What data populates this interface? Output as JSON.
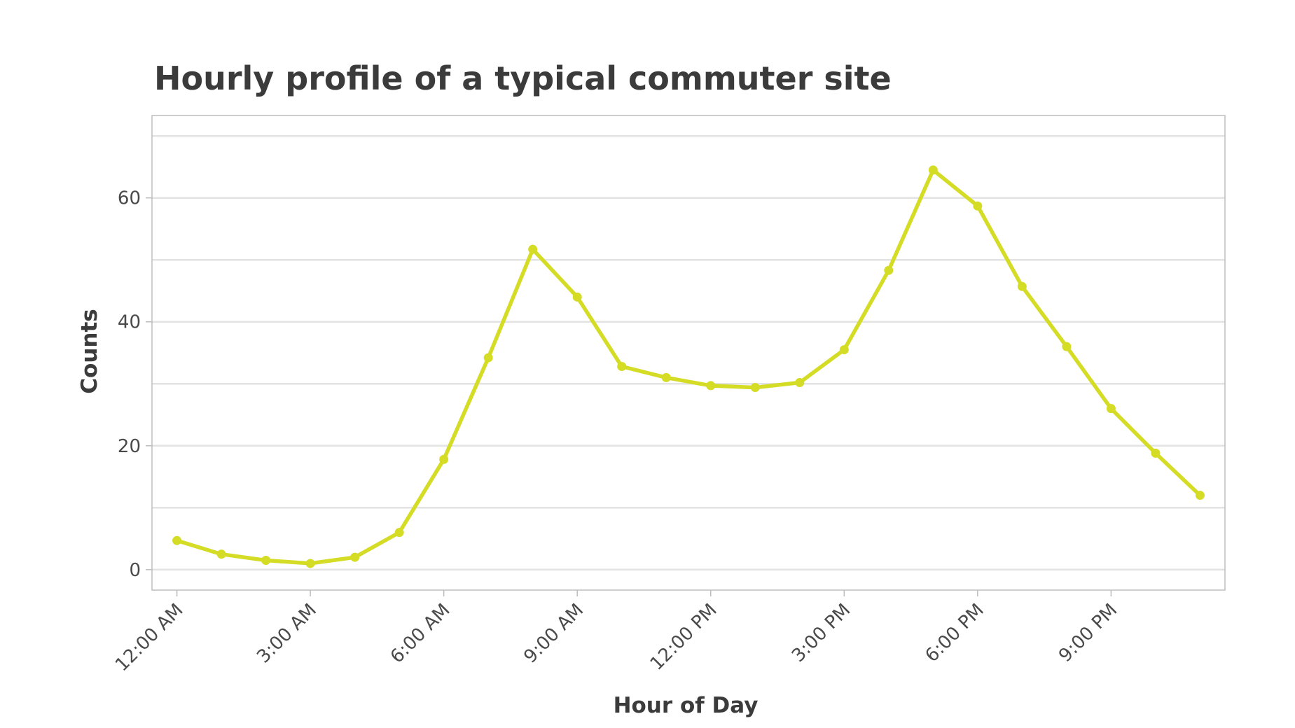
{
  "chart_data": {
    "type": "line",
    "title": "Hourly profile of a typical commuter site",
    "xlabel": "Hour of Day",
    "ylabel": "Counts",
    "x": [
      0,
      1,
      2,
      3,
      4,
      5,
      6,
      7,
      8,
      9,
      10,
      11,
      12,
      13,
      14,
      15,
      16,
      17,
      18,
      19,
      20,
      21,
      22,
      23
    ],
    "series": [
      {
        "values": [
          4.7,
          2.5,
          1.5,
          1.0,
          2.0,
          6.0,
          17.8,
          34.2,
          51.7,
          44.0,
          32.8,
          31.0,
          29.7,
          29.4,
          30.2,
          35.5,
          48.3,
          64.5,
          58.7,
          45.7,
          36.0,
          26.0,
          18.8,
          12.0
        ]
      }
    ],
    "xticks": [
      0,
      3,
      6,
      9,
      12,
      15,
      18,
      21
    ],
    "xtick_labels": [
      "12:00 AM",
      "3:00 AM",
      "6:00 AM",
      "9:00 AM",
      "12:00 PM",
      "3:00 PM",
      "6:00 PM",
      "9:00 PM"
    ],
    "yticks": [
      0,
      20,
      40,
      60
    ],
    "ytick_labels": [
      "0",
      "20",
      "40",
      "60"
    ],
    "xlim": [
      -0.56,
      23.56
    ],
    "ylim": [
      -3.3,
      73.3
    ],
    "grid": true,
    "colors": {
      "line": "#d4dc26",
      "grid": "#e3e3e3",
      "frame": "#bdbdbd",
      "text": "#3b3b3b"
    }
  }
}
